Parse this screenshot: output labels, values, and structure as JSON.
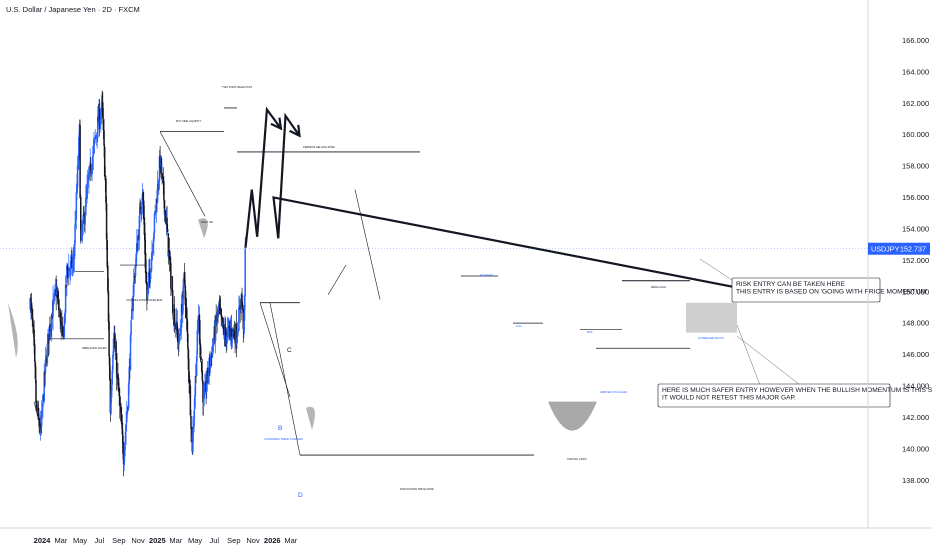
{
  "header": {
    "title": "U.S. Dollar / Japanese Yen · 2D · FXCM"
  },
  "price_axis": {
    "ticks": [
      "166.000",
      "164.000",
      "162.000",
      "160.000",
      "158.000",
      "156.000",
      "154.000",
      "152.000",
      "150.000",
      "148.000",
      "146.000",
      "144.000",
      "142.000",
      "140.000",
      "138.000"
    ],
    "last_price": "152.737",
    "last_price_symbol": "USDJPY",
    "last_price_color": "#2962ff"
  },
  "time_axis": {
    "labels": [
      {
        "text": "2024",
        "bold": true
      },
      {
        "text": "Mar",
        "bold": false
      },
      {
        "text": "May",
        "bold": false
      },
      {
        "text": "Jul",
        "bold": false
      },
      {
        "text": "Sep",
        "bold": false
      },
      {
        "text": "Nov",
        "bold": false
      },
      {
        "text": "2025",
        "bold": true
      },
      {
        "text": "Mar",
        "bold": false
      },
      {
        "text": "May",
        "bold": false
      },
      {
        "text": "Jul",
        "bold": false
      },
      {
        "text": "Sep",
        "bold": false
      },
      {
        "text": "Nov",
        "bold": false
      },
      {
        "text": "2026",
        "bold": true
      },
      {
        "text": "Mar",
        "bold": false
      }
    ]
  },
  "annotations": {
    "risk_entry": [
      "RISK ENTRY CAN BE TAKEN HERE",
      "THIS ENTRY IS BASED ON 'GOING WITH PRICE MOMENTUM'"
    ],
    "safer_entry": [
      "HERE IS MUCH SAFER ENTRY HOWEVER WHEN THE BULLISH MOMENTUM IS THIS STRONG",
      "IT WOULD NOT RETEST THIS MAJOR GAP."
    ],
    "small_labels": {
      "top": "TWO POINT REJECTION",
      "bsl": "BUY SIDE LIQUIDITY",
      "premium": "PREMIUM SELLING ZONE",
      "accumulation": "ACCUMULATION PHASE END",
      "imbalance": "IMBALANCE FILLED",
      "daily_ob": "DAILY OB",
      "d_label": "D",
      "b_label": "B",
      "c_label": "C",
      "confirmed": "CONFIRMED TREND CHANGED",
      "discounted": "DISCOUNTED PRICE ZONE",
      "strong_low": "STRONG LOWS",
      "gap": "1D BREAKER BLOCK",
      "fvg_filled": "ARRIVED FVG FILLED",
      "weak_high": "WEAK HIGH",
      "fvg": "FVG",
      "ote": "BOS",
      "eq_high": "EQ HIGHS"
    }
  },
  "chart_data": {
    "type": "candlestick",
    "title": "U.S. Dollar / Japanese Yen · 2D · FXCM",
    "symbol": "USDJPY",
    "timeframe": "2D",
    "ylim": [
      137,
      167
    ],
    "last_price": 152.737,
    "colors": {
      "up": "#2962ff",
      "down": "#131722"
    },
    "close_path": [
      [
        "2023-11-25",
        149.5
      ],
      [
        "2023-12-05",
        147.0
      ],
      [
        "2023-12-14",
        142.5
      ],
      [
        "2023-12-28",
        141.0
      ],
      [
        "2024-01-10",
        144.8
      ],
      [
        "2024-01-25",
        147.8
      ],
      [
        "2024-02-15",
        150.1
      ],
      [
        "2024-03-08",
        146.8
      ],
      [
        "2024-03-20",
        151.3
      ],
      [
        "2024-04-10",
        151.8
      ],
      [
        "2024-04-29",
        160.2
      ],
      [
        "2024-05-03",
        153.0
      ],
      [
        "2024-05-29",
        157.2
      ],
      [
        "2024-06-28",
        160.9
      ],
      [
        "2024-07-10",
        161.7
      ],
      [
        "2024-07-20",
        157.0
      ],
      [
        "2024-08-05",
        142.5
      ],
      [
        "2024-08-15",
        147.5
      ],
      [
        "2024-09-16",
        139.6
      ],
      [
        "2024-10-01",
        143.5
      ],
      [
        "2024-10-15",
        149.8
      ],
      [
        "2024-11-15",
        156.6
      ],
      [
        "2024-11-29",
        149.5
      ],
      [
        "2024-12-10",
        151.6
      ],
      [
        "2025-01-10",
        158.4
      ],
      [
        "2025-01-30",
        154.3
      ],
      [
        "2025-02-20",
        149.0
      ],
      [
        "2025-03-11",
        146.6
      ],
      [
        "2025-03-28",
        151.0
      ],
      [
        "2025-04-22",
        140.2
      ],
      [
        "2025-05-12",
        148.6
      ],
      [
        "2025-05-28",
        142.8
      ],
      [
        "2025-06-10",
        144.7
      ],
      [
        "2025-07-15",
        148.9
      ],
      [
        "2025-08-01",
        147.2
      ],
      [
        "2025-08-25",
        147.5
      ],
      [
        "2025-09-10",
        147.3
      ],
      [
        "2025-09-25",
        149.7
      ],
      [
        "2025-10-03",
        147.5
      ],
      [
        "2025-10-08",
        152.7
      ]
    ],
    "projection": [
      [
        "2025-10-08",
        152.8
      ],
      [
        "2025-10-28",
        156.5
      ],
      [
        "2025-11-14",
        153.5
      ],
      [
        "2025-12-15",
        161.6
      ],
      [
        "2025-12-18",
        161.4
      ],
      [
        "2026-01-05",
        156.0
      ],
      [
        "2026-01-20",
        153.4
      ],
      [
        "2026-02-12",
        161.2
      ]
    ],
    "levels": [
      {
        "price": 148.2,
        "from": "2025-09-18",
        "to": "2025-10-22",
        "label": "1D BREAKER BLOCK"
      }
    ]
  }
}
